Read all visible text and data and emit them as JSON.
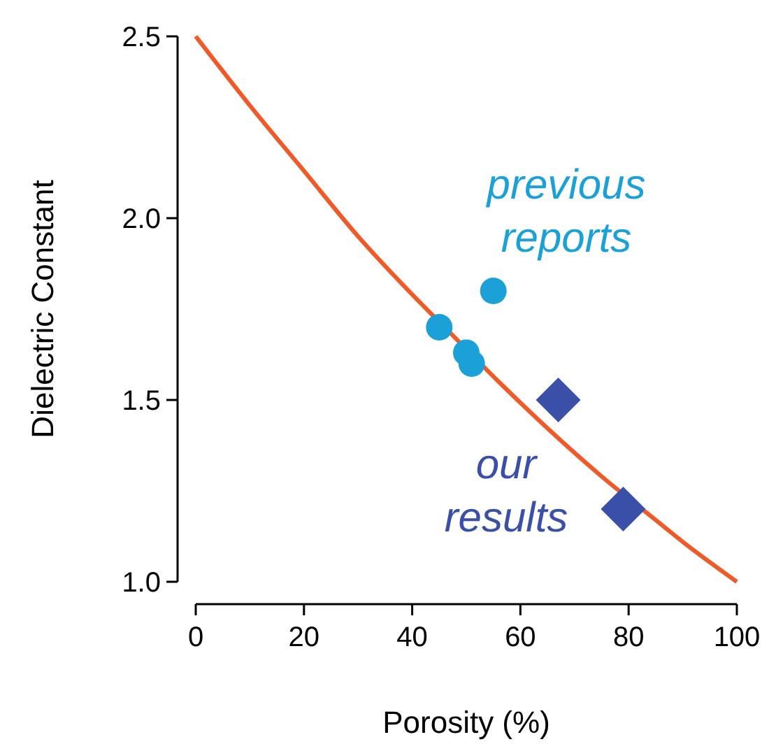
{
  "chart_data": {
    "type": "scatter",
    "xlabel": "Porosity (%)",
    "ylabel": "Dielectric Constant",
    "xlim": [
      0,
      100
    ],
    "ylim": [
      1.0,
      2.5
    ],
    "xticks": [
      0,
      20,
      40,
      60,
      80,
      100
    ],
    "yticks": [
      {
        "value": 1.0,
        "label": "1.0"
      },
      {
        "value": 1.5,
        "label": "1.5"
      },
      {
        "value": 2.0,
        "label": "2.0"
      },
      {
        "value": 2.5,
        "label": "2.5"
      }
    ],
    "grid": false,
    "series": [
      {
        "type": "line",
        "color": "#f05a28",
        "marker": "none",
        "line_style": "solid",
        "x": [
          0,
          10,
          20,
          30,
          40,
          48,
          56,
          63,
          75,
          85,
          90,
          100
        ],
        "values": [
          2.5,
          2.31,
          2.13,
          1.95,
          1.79,
          1.67,
          1.55,
          1.45,
          1.29,
          1.17,
          1.11,
          1.0
        ]
      },
      {
        "name": "previous reports",
        "color": "#1ba1d8",
        "marker": "circle",
        "x": [
          45,
          50,
          51,
          55
        ],
        "values": [
          1.7,
          1.63,
          1.6,
          1.8
        ]
      },
      {
        "name": "our results",
        "color": "#3a4fa8",
        "marker": "diamond",
        "x": [
          67,
          79
        ],
        "values": [
          1.5,
          1.2
        ]
      }
    ]
  }
}
